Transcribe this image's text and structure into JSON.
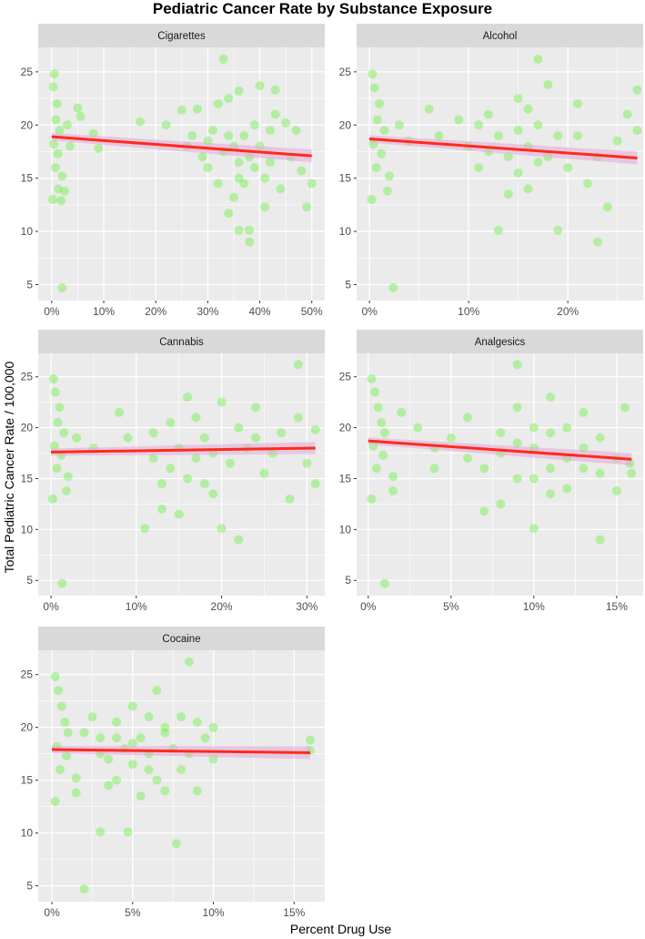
{
  "chart_data": {
    "type": "scatter",
    "title": "Pediatric Cancer Rate by Substance Exposure",
    "xlabel": "Percent Drug Use",
    "ylabel": "Total Pediatric Cancer Rate / 100,000",
    "ylim": [
      3.5,
      27.3
    ],
    "yticks": [
      5,
      10,
      15,
      20,
      25
    ],
    "point_color": "#7CF05A",
    "line_color": "#FF2A1A",
    "band_color": "#E0A8D8",
    "grid": true,
    "panels": [
      {
        "name": "Cigarettes",
        "xlim": [
          -2.6,
          52.5
        ],
        "xticks": [
          0,
          10,
          20,
          30,
          40,
          50
        ],
        "xtick_labels": [
          "0%",
          "10%",
          "20%",
          "30%",
          "40%",
          "50%"
        ],
        "fit": [
          [
            0,
            18.9
          ],
          [
            50,
            17.1
          ]
        ],
        "points": [
          [
            0.5,
            24.8
          ],
          [
            0.3,
            23.6
          ],
          [
            1,
            22
          ],
          [
            0.8,
            20.5
          ],
          [
            1.5,
            19.5
          ],
          [
            0.4,
            18.2
          ],
          [
            1.2,
            17.3
          ],
          [
            0.7,
            16
          ],
          [
            2,
            15.2
          ],
          [
            0.2,
            13
          ],
          [
            1.8,
            12.9
          ],
          [
            1.3,
            14
          ],
          [
            2.5,
            13.8
          ],
          [
            2,
            4.7
          ],
          [
            5,
            21.6
          ],
          [
            5.5,
            20.8
          ],
          [
            8,
            19.2
          ],
          [
            9,
            17.8
          ],
          [
            3,
            20
          ],
          [
            3.5,
            18
          ],
          [
            17,
            20.3
          ],
          [
            22,
            20
          ],
          [
            25,
            21.4
          ],
          [
            28,
            21.5
          ],
          [
            27,
            19
          ],
          [
            30,
            18.5
          ],
          [
            32,
            22
          ],
          [
            34,
            22.5
          ],
          [
            36,
            23.2
          ],
          [
            40,
            23.7
          ],
          [
            43,
            23.3
          ],
          [
            33,
            26.2
          ],
          [
            30,
            16
          ],
          [
            32,
            14.5
          ],
          [
            35,
            13.2
          ],
          [
            34,
            11.7
          ],
          [
            36,
            10.1
          ],
          [
            38,
            10.1
          ],
          [
            38,
            9
          ],
          [
            41,
            12.3
          ],
          [
            49,
            12.3
          ],
          [
            50,
            14.5
          ],
          [
            45,
            20.2
          ],
          [
            47,
            19.5
          ],
          [
            48,
            15.7
          ],
          [
            44,
            14
          ],
          [
            36,
            15
          ],
          [
            38,
            17
          ],
          [
            40,
            18
          ],
          [
            42,
            16.5
          ],
          [
            37,
            19
          ],
          [
            35,
            18
          ],
          [
            39,
            20
          ],
          [
            33,
            17.5
          ],
          [
            41,
            15
          ],
          [
            46,
            17
          ],
          [
            31,
            19.5
          ],
          [
            29,
            17
          ],
          [
            26,
            18
          ],
          [
            43,
            21
          ],
          [
            36,
            16.5
          ],
          [
            37,
            14.5
          ],
          [
            39,
            16
          ],
          [
            34,
            19
          ],
          [
            42,
            19.5
          ]
        ]
      },
      {
        "name": "Alcohol",
        "xlim": [
          -1.3,
          27.6
        ],
        "xticks": [
          0,
          10,
          20
        ],
        "xtick_labels": [
          "0%",
          "10%",
          "20%"
        ],
        "fit": [
          [
            0,
            18.7
          ],
          [
            27,
            16.9
          ]
        ],
        "points": [
          [
            0.3,
            24.8
          ],
          [
            0.5,
            23.5
          ],
          [
            1,
            22
          ],
          [
            0.8,
            20.5
          ],
          [
            1.5,
            19.5
          ],
          [
            0.4,
            18.2
          ],
          [
            1.2,
            17.3
          ],
          [
            0.7,
            16
          ],
          [
            2,
            15.2
          ],
          [
            0.2,
            13
          ],
          [
            1.8,
            13.8
          ],
          [
            2.4,
            4.7
          ],
          [
            3,
            20
          ],
          [
            4,
            18.5
          ],
          [
            6,
            21.5
          ],
          [
            7,
            19
          ],
          [
            9,
            20.5
          ],
          [
            10,
            18
          ],
          [
            11,
            16
          ],
          [
            12,
            21
          ],
          [
            13,
            19
          ],
          [
            14,
            17
          ],
          [
            15,
            15.5
          ],
          [
            16,
            18
          ],
          [
            17,
            26.2
          ],
          [
            17,
            20
          ],
          [
            18,
            23.8
          ],
          [
            15,
            22.5
          ],
          [
            13,
            10.1
          ],
          [
            19,
            10.1
          ],
          [
            23,
            9
          ],
          [
            20,
            16
          ],
          [
            21,
            19
          ],
          [
            22,
            14.5
          ],
          [
            24,
            12.3
          ],
          [
            25,
            18.5
          ],
          [
            26,
            21
          ],
          [
            27,
            23.3
          ],
          [
            27,
            19.5
          ],
          [
            14,
            13.5
          ],
          [
            16,
            14
          ],
          [
            18,
            17
          ],
          [
            12,
            17.5
          ],
          [
            19,
            19
          ],
          [
            15,
            19.5
          ],
          [
            17,
            16.5
          ],
          [
            21,
            22
          ],
          [
            23,
            17
          ],
          [
            11,
            20
          ],
          [
            16,
            21.5
          ]
        ]
      },
      {
        "name": "Cannabis",
        "xlim": [
          -1.5,
          32.1
        ],
        "xticks": [
          0,
          10,
          20,
          30
        ],
        "xtick_labels": [
          "0%",
          "10%",
          "20%",
          "30%"
        ],
        "fit": [
          [
            0,
            17.6
          ],
          [
            31,
            18.0
          ]
        ],
        "points": [
          [
            0.3,
            24.8
          ],
          [
            0.5,
            23.5
          ],
          [
            1,
            22
          ],
          [
            0.8,
            20.5
          ],
          [
            1.5,
            19.5
          ],
          [
            0.4,
            18.2
          ],
          [
            1.2,
            17.3
          ],
          [
            0.7,
            16
          ],
          [
            2,
            15.2
          ],
          [
            0.2,
            13
          ],
          [
            1.8,
            13.8
          ],
          [
            1.3,
            4.7
          ],
          [
            3,
            19
          ],
          [
            5,
            18
          ],
          [
            8,
            21.5
          ],
          [
            9,
            19
          ],
          [
            11,
            10.1
          ],
          [
            12,
            17
          ],
          [
            13,
            14.5
          ],
          [
            13,
            12
          ],
          [
            14,
            16
          ],
          [
            15,
            18
          ],
          [
            15,
            11.5
          ],
          [
            16,
            23
          ],
          [
            16,
            15
          ],
          [
            17,
            17
          ],
          [
            18,
            19
          ],
          [
            19,
            13.5
          ],
          [
            20,
            10.1
          ],
          [
            21,
            16.5
          ],
          [
            22,
            9
          ],
          [
            22,
            20
          ],
          [
            23,
            18
          ],
          [
            24,
            22
          ],
          [
            25,
            15.5
          ],
          [
            26,
            17.5
          ],
          [
            27,
            19.5
          ],
          [
            28,
            13
          ],
          [
            29,
            26.2
          ],
          [
            29,
            21
          ],
          [
            30,
            16.5
          ],
          [
            31,
            14.5
          ],
          [
            31,
            19.8
          ],
          [
            14,
            20.5
          ],
          [
            17,
            21
          ],
          [
            18,
            14.5
          ],
          [
            19,
            17.5
          ],
          [
            24,
            19
          ],
          [
            12,
            19.5
          ],
          [
            20,
            22.5
          ]
        ]
      },
      {
        "name": "Analgesics",
        "xlim": [
          -0.7,
          16.6
        ],
        "xticks": [
          0,
          5,
          10,
          15
        ],
        "xtick_labels": [
          "0%",
          "5%",
          "10%",
          "15%"
        ],
        "fit": [
          [
            0,
            18.7
          ],
          [
            15.9,
            16.9
          ]
        ],
        "points": [
          [
            0.2,
            24.8
          ],
          [
            0.4,
            23.5
          ],
          [
            0.6,
            22
          ],
          [
            0.8,
            20.5
          ],
          [
            1,
            19.5
          ],
          [
            0.3,
            18.2
          ],
          [
            0.9,
            17.3
          ],
          [
            0.5,
            16
          ],
          [
            1.5,
            15.2
          ],
          [
            0.2,
            13
          ],
          [
            1.5,
            13.8
          ],
          [
            1,
            4.7
          ],
          [
            2,
            21.5
          ],
          [
            3,
            20
          ],
          [
            4,
            18
          ],
          [
            5,
            19
          ],
          [
            6,
            21
          ],
          [
            6,
            17
          ],
          [
            7,
            11.8
          ],
          [
            8,
            12.5
          ],
          [
            8,
            19.5
          ],
          [
            9,
            26.2
          ],
          [
            9,
            22
          ],
          [
            9,
            15
          ],
          [
            10,
            18
          ],
          [
            10,
            10.1
          ],
          [
            11,
            23
          ],
          [
            11,
            16
          ],
          [
            12,
            20
          ],
          [
            12,
            14
          ],
          [
            13,
            18
          ],
          [
            13,
            21.5
          ],
          [
            14,
            15.5
          ],
          [
            14,
            9
          ],
          [
            14,
            19
          ],
          [
            15,
            17
          ],
          [
            15,
            13.8
          ],
          [
            15.5,
            22
          ],
          [
            15.9,
            15.5
          ],
          [
            15.8,
            16.5
          ],
          [
            7,
            16
          ],
          [
            8,
            17.5
          ],
          [
            10,
            20
          ],
          [
            11,
            13.5
          ],
          [
            12,
            17
          ],
          [
            13,
            16
          ],
          [
            9,
            18.5
          ],
          [
            10,
            15
          ],
          [
            11,
            19.5
          ],
          [
            4,
            16
          ]
        ]
      },
      {
        "name": "Cocaine",
        "xlim": [
          -0.85,
          16.9
        ],
        "xticks": [
          0,
          5,
          10,
          15
        ],
        "xtick_labels": [
          "0%",
          "5%",
          "10%",
          "15%"
        ],
        "fit": [
          [
            0,
            17.9
          ],
          [
            16,
            17.6
          ]
        ],
        "points": [
          [
            0.2,
            24.8
          ],
          [
            0.4,
            23.5
          ],
          [
            0.6,
            22
          ],
          [
            0.8,
            20.5
          ],
          [
            1,
            19.5
          ],
          [
            0.3,
            18.2
          ],
          [
            0.9,
            17.3
          ],
          [
            0.5,
            16
          ],
          [
            1.5,
            15.2
          ],
          [
            0.2,
            13
          ],
          [
            1.5,
            13.8
          ],
          [
            2,
            4.7
          ],
          [
            2.5,
            21
          ],
          [
            3,
            19
          ],
          [
            3.5,
            17
          ],
          [
            3,
            10.1
          ],
          [
            4,
            20.5
          ],
          [
            4,
            15
          ],
          [
            4.5,
            18
          ],
          [
            5,
            22
          ],
          [
            5,
            16.5
          ],
          [
            4.7,
            10.1
          ],
          [
            5.5,
            19
          ],
          [
            5.5,
            13.5
          ],
          [
            6,
            17.5
          ],
          [
            6,
            21
          ],
          [
            6.5,
            23.5
          ],
          [
            6.5,
            15
          ],
          [
            7,
            19.5
          ],
          [
            7,
            14
          ],
          [
            7.7,
            9
          ],
          [
            7.5,
            18
          ],
          [
            8,
            21
          ],
          [
            8,
            16
          ],
          [
            8.5,
            26.2
          ],
          [
            8.5,
            17.5
          ],
          [
            9,
            20.5
          ],
          [
            9,
            14
          ],
          [
            9.5,
            19
          ],
          [
            10,
            17
          ],
          [
            10,
            20
          ],
          [
            16,
            18.8
          ],
          [
            16,
            17.8
          ],
          [
            3,
            17.5
          ],
          [
            4,
            19
          ],
          [
            5,
            18.5
          ],
          [
            6,
            16
          ],
          [
            2,
            19.5
          ],
          [
            7,
            20
          ],
          [
            3.5,
            14.5
          ]
        ]
      }
    ]
  }
}
